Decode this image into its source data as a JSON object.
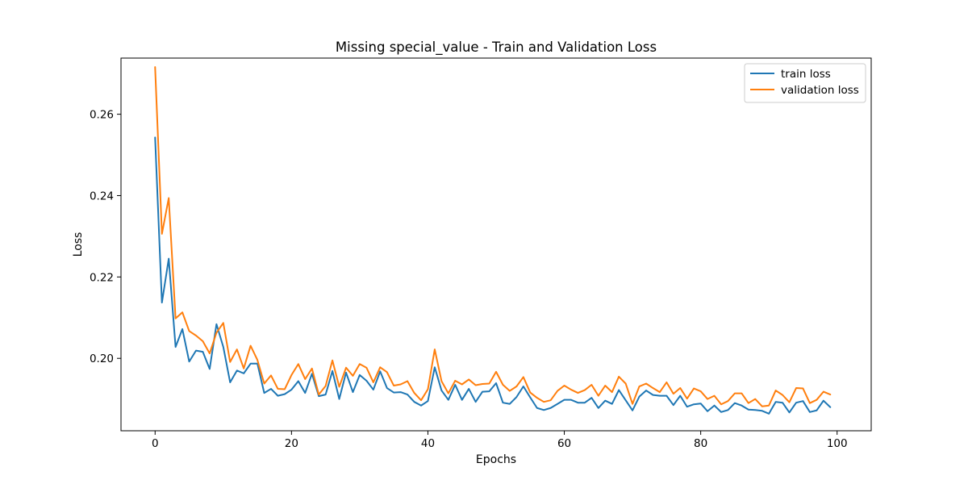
{
  "chart_data": {
    "type": "line",
    "title": "Missing special_value - Train and Validation Loss",
    "xlabel": "Epochs",
    "ylabel": "Loss",
    "xlim": [
      -5.0,
      105.0
    ],
    "ylim": [
      0.1822,
      0.2738
    ],
    "xticks": [
      0,
      20,
      40,
      60,
      80,
      100
    ],
    "yticks": [
      0.2,
      0.22,
      0.24,
      0.26
    ],
    "xtick_labels": [
      "0",
      "20",
      "40",
      "60",
      "80",
      "100"
    ],
    "ytick_labels": [
      "0.20",
      "0.22",
      "0.24",
      "0.26"
    ],
    "grid": false,
    "legend_position": "top-right",
    "series": [
      {
        "name": "train loss",
        "color": "#1f77b4",
        "x": [
          0,
          1,
          2,
          3,
          4,
          5,
          6,
          7,
          8,
          9,
          10,
          11,
          12,
          13,
          14,
          15,
          16,
          17,
          18,
          19,
          20,
          21,
          22,
          23,
          24,
          25,
          26,
          27,
          28,
          29,
          30,
          31,
          32,
          33,
          34,
          35,
          36,
          37,
          38,
          39,
          40,
          41,
          42,
          43,
          44,
          45,
          46,
          47,
          48,
          49,
          50,
          51,
          52,
          53,
          54,
          55,
          56,
          57,
          58,
          59,
          60,
          61,
          62,
          63,
          64,
          65,
          66,
          67,
          68,
          69,
          70,
          71,
          72,
          73,
          74,
          75,
          76,
          77,
          78,
          79,
          80,
          81,
          82,
          83,
          84,
          85,
          86,
          87,
          88,
          89,
          90,
          91,
          92,
          93,
          94,
          95,
          96,
          97,
          98,
          99
        ],
        "values": [
          0.2543,
          0.2137,
          0.2245,
          0.2028,
          0.2072,
          0.1992,
          0.2019,
          0.2016,
          0.1974,
          0.2084,
          0.2028,
          0.1941,
          0.197,
          0.1963,
          0.1987,
          0.1987,
          0.1915,
          0.1925,
          0.1908,
          0.1912,
          0.1923,
          0.1944,
          0.1915,
          0.1962,
          0.1907,
          0.1911,
          0.1969,
          0.19,
          0.1965,
          0.1917,
          0.1959,
          0.1945,
          0.1923,
          0.1968,
          0.1927,
          0.1916,
          0.1917,
          0.1911,
          0.1893,
          0.1884,
          0.1895,
          0.1978,
          0.1921,
          0.1898,
          0.1935,
          0.1898,
          0.1925,
          0.1893,
          0.1918,
          0.1919,
          0.1939,
          0.1891,
          0.1888,
          0.1905,
          0.1931,
          0.1904,
          0.1878,
          0.1873,
          0.1878,
          0.1888,
          0.1898,
          0.1898,
          0.1891,
          0.1891,
          0.1903,
          0.1878,
          0.1896,
          0.1888,
          0.1922,
          0.1897,
          0.1872,
          0.1906,
          0.1921,
          0.191,
          0.1908,
          0.1908,
          0.1885,
          0.1908,
          0.1881,
          0.1887,
          0.1889,
          0.187,
          0.1884,
          0.1868,
          0.1873,
          0.189,
          0.1884,
          0.1874,
          0.1873,
          0.1871,
          0.1864,
          0.1893,
          0.1891,
          0.1867,
          0.1891,
          0.1895,
          0.1868,
          0.1872,
          0.1896,
          0.188
        ]
      },
      {
        "name": "validation loss",
        "color": "#ff7f0e",
        "x": [
          0,
          1,
          2,
          3,
          4,
          5,
          6,
          7,
          8,
          9,
          10,
          11,
          12,
          13,
          14,
          15,
          16,
          17,
          18,
          19,
          20,
          21,
          22,
          23,
          24,
          25,
          26,
          27,
          28,
          29,
          30,
          31,
          32,
          33,
          34,
          35,
          36,
          37,
          38,
          39,
          40,
          41,
          42,
          43,
          44,
          45,
          46,
          47,
          48,
          49,
          50,
          51,
          52,
          53,
          54,
          55,
          56,
          57,
          58,
          59,
          60,
          61,
          62,
          63,
          64,
          65,
          66,
          67,
          68,
          69,
          70,
          71,
          72,
          73,
          74,
          75,
          76,
          77,
          78,
          79,
          80,
          81,
          82,
          83,
          84,
          85,
          86,
          87,
          88,
          89,
          90,
          91,
          92,
          93,
          94,
          95,
          96,
          97,
          98,
          99
        ],
        "values": [
          0.2716,
          0.2306,
          0.2394,
          0.2098,
          0.2113,
          0.2067,
          0.2056,
          0.2042,
          0.2012,
          0.2063,
          0.2087,
          0.1991,
          0.2022,
          0.1975,
          0.2031,
          0.1996,
          0.1938,
          0.1958,
          0.1925,
          0.1924,
          0.1959,
          0.1986,
          0.1949,
          0.1975,
          0.1911,
          0.1932,
          0.1995,
          0.193,
          0.1977,
          0.1957,
          0.1986,
          0.1977,
          0.1941,
          0.1978,
          0.1966,
          0.1933,
          0.1936,
          0.1944,
          0.1915,
          0.1897,
          0.1924,
          0.2022,
          0.1944,
          0.1914,
          0.1945,
          0.1936,
          0.1948,
          0.1934,
          0.1937,
          0.1938,
          0.1967,
          0.1935,
          0.192,
          0.1931,
          0.1954,
          0.1916,
          0.1903,
          0.1893,
          0.1897,
          0.192,
          0.1933,
          0.1923,
          0.1915,
          0.1922,
          0.1935,
          0.1908,
          0.1933,
          0.1917,
          0.1955,
          0.1938,
          0.1888,
          0.1931,
          0.1938,
          0.1927,
          0.1917,
          0.1941,
          0.1913,
          0.1927,
          0.1901,
          0.1926,
          0.1919,
          0.19,
          0.1908,
          0.1887,
          0.1895,
          0.1914,
          0.1914,
          0.189,
          0.19,
          0.1882,
          0.1884,
          0.1921,
          0.191,
          0.1892,
          0.1927,
          0.1926,
          0.189,
          0.1898,
          0.1918,
          0.1911
        ]
      }
    ]
  }
}
